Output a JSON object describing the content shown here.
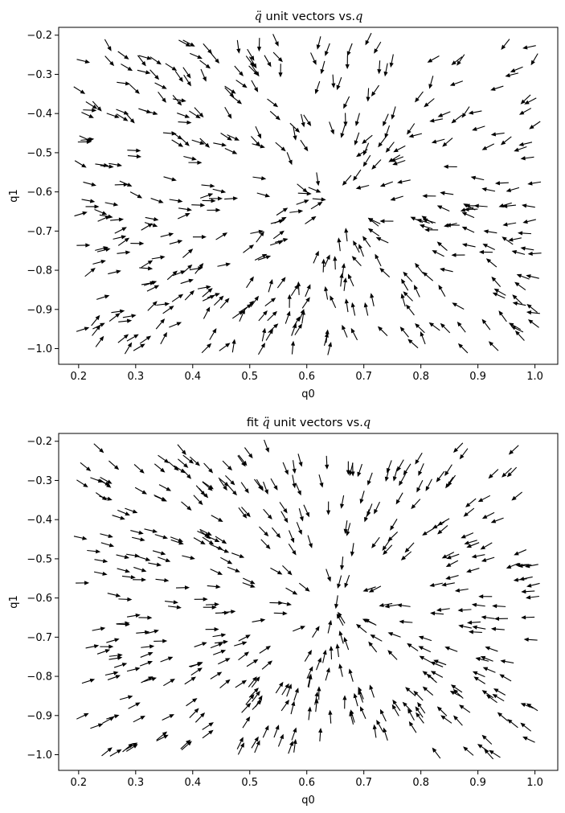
{
  "chart_data": [
    {
      "type": "quiver",
      "title_prefix": "",
      "title_symbol": "q̈",
      "title_middle": " unit vectors vs.",
      "title_var": "q",
      "xlabel": "q0",
      "ylabel": "q1",
      "xlim": [
        0.165,
        1.04
      ],
      "ylim": [
        -1.04,
        -0.18
      ],
      "xticks": [
        0.2,
        0.3,
        0.4,
        0.5,
        0.6,
        0.7,
        0.8,
        0.9,
        1.0
      ],
      "yticks": [
        -1.0,
        -0.9,
        -0.8,
        -0.7,
        -0.6,
        -0.5,
        -0.4,
        -0.3,
        -0.2
      ],
      "xtick_labels": [
        "0.2",
        "0.3",
        "0.4",
        "0.5",
        "0.6",
        "0.7",
        "0.8",
        "0.9",
        "1.0"
      ],
      "ytick_labels": [
        "−1.0",
        "−0.9",
        "−0.8",
        "−0.7",
        "−0.6",
        "−0.5",
        "−0.4",
        "−0.3",
        "−0.2"
      ],
      "field_center": [
        0.635,
        -0.625
      ],
      "arrow_count": 420,
      "arrow_color": "#000000",
      "grid": false
    },
    {
      "type": "quiver",
      "title_prefix": "fit ",
      "title_symbol": "q̈",
      "title_middle": " unit vectors vs.",
      "title_var": "q",
      "xlabel": "q0",
      "ylabel": "q1",
      "xlim": [
        0.165,
        1.04
      ],
      "ylim": [
        -1.04,
        -0.18
      ],
      "xticks": [
        0.2,
        0.3,
        0.4,
        0.5,
        0.6,
        0.7,
        0.8,
        0.9,
        1.0
      ],
      "yticks": [
        -1.0,
        -0.9,
        -0.8,
        -0.7,
        -0.6,
        -0.5,
        -0.4,
        -0.3,
        -0.2
      ],
      "xtick_labels": [
        "0.2",
        "0.3",
        "0.4",
        "0.5",
        "0.6",
        "0.7",
        "0.8",
        "0.9",
        "1.0"
      ],
      "ytick_labels": [
        "−1.0",
        "−0.9",
        "−0.8",
        "−0.7",
        "−0.6",
        "−0.5",
        "−0.4",
        "−0.3",
        "−0.2"
      ],
      "field_center": [
        0.65,
        -0.625
      ],
      "arrow_count": 420,
      "arrow_color": "#000000",
      "grid": false
    }
  ]
}
